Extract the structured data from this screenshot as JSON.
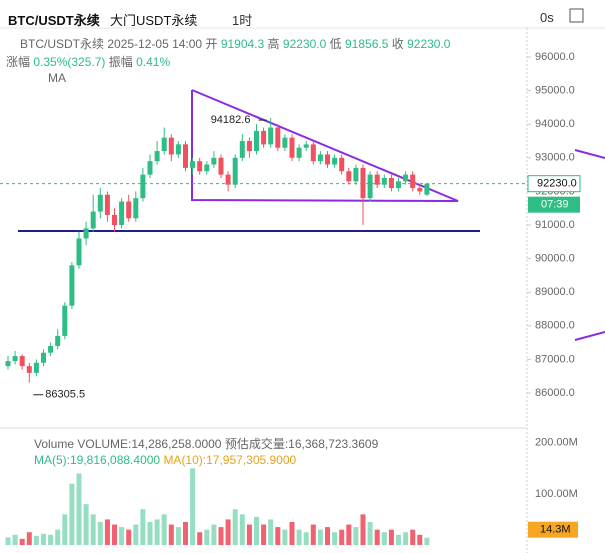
{
  "header": {
    "symbol": "BTC/USDT永续",
    "market": "大门USDT永续",
    "interval": "1时",
    "timer": "0s"
  },
  "info": {
    "symbol": "BTC/USDT永续",
    "time": "2025-12-05 14:00",
    "fields": [
      {
        "label": "开",
        "value": "91904.3"
      },
      {
        "label": "高",
        "value": "92230.0"
      },
      {
        "label": "低",
        "value": "91856.5"
      },
      {
        "label": "收",
        "value": "92230.0"
      }
    ],
    "change_label": "涨幅",
    "change": "0.35%(325.7)",
    "amplitude_label": "振幅",
    "amplitude": "0.41%",
    "ma": "MA"
  },
  "volume_info": {
    "title": "Volume",
    "volume": "VOLUME:14,286,258.0000",
    "estimate": "预估成交量:16,368,723.3609",
    "ma5": "MA(5):19,816,088.4000",
    "ma10": "MA(10):17,957,305.9000"
  },
  "chart_data": {
    "type": "candlestick",
    "up_color": "#2ebd85",
    "down_color": "#f0505f",
    "open": [
      86800,
      86950,
      87100,
      86800,
      86600,
      86900,
      87200,
      87400,
      87700,
      88600,
      89800,
      90600,
      90900,
      91400,
      91900,
      91300,
      91000,
      91700,
      91200,
      91800,
      92500,
      92900,
      93200,
      93600,
      93100,
      93400,
      92700,
      92900,
      92600,
      92800,
      93000,
      92500,
      92200,
      93000,
      93500,
      93200,
      93800,
      93400,
      93900,
      93300,
      93600,
      93000,
      93300,
      93400,
      92900,
      93100,
      92800,
      93000,
      92600,
      92300,
      92700,
      91800,
      92500,
      92200,
      92400,
      92100,
      92300,
      92500,
      92100,
      91904.3
    ],
    "high": [
      87100,
      87250,
      87150,
      86900,
      87000,
      87300,
      87500,
      87900,
      88700,
      89900,
      90800,
      91100,
      91900,
      92100,
      92000,
      91500,
      91800,
      91900,
      92000,
      92700,
      93100,
      93500,
      93900,
      93700,
      93500,
      93500,
      93000,
      93000,
      92900,
      93200,
      93100,
      92600,
      93100,
      93700,
      93600,
      94000,
      93900,
      94182.6,
      94000,
      93700,
      93700,
      93400,
      93500,
      93500,
      93200,
      93200,
      93100,
      93100,
      92700,
      92800,
      92800,
      92600,
      92600,
      92500,
      92500,
      92400,
      92600,
      92600,
      92200,
      92230
    ],
    "low": [
      86700,
      86850,
      86700,
      86305.5,
      86500,
      86800,
      87100,
      87300,
      87600,
      88500,
      89700,
      90400,
      90800,
      91200,
      91100,
      90800,
      90900,
      91100,
      91100,
      91700,
      92400,
      92800,
      93100,
      92900,
      93000,
      92600,
      92500,
      92500,
      92500,
      92700,
      92400,
      92000,
      92100,
      92900,
      93000,
      93100,
      93300,
      93300,
      93200,
      93200,
      92900,
      92900,
      93200,
      92800,
      92800,
      92700,
      92700,
      92500,
      92200,
      92200,
      91000,
      91700,
      92100,
      92100,
      92000,
      92000,
      92200,
      92000,
      91900,
      91856.5
    ],
    "close": [
      86950,
      87100,
      86800,
      86600,
      86900,
      87200,
      87400,
      87700,
      88600,
      89800,
      90600,
      90900,
      91400,
      91900,
      91300,
      91000,
      91700,
      91200,
      91800,
      92500,
      92900,
      93200,
      93600,
      93100,
      93400,
      92700,
      92900,
      92600,
      92800,
      93000,
      92500,
      92200,
      93000,
      93500,
      93200,
      93800,
      93400,
      93900,
      93300,
      93600,
      93000,
      93300,
      93400,
      92900,
      93100,
      92800,
      93000,
      92600,
      92300,
      92700,
      91800,
      92500,
      92200,
      92400,
      92100,
      92300,
      92500,
      92100,
      92000,
      92230
    ],
    "ylim": [
      85048,
      96804
    ],
    "yticks": [
      {
        "value": 86000,
        "label": "86000.0"
      },
      {
        "value": 87000,
        "label": "87000.0"
      },
      {
        "value": 88000,
        "label": "88000.0"
      },
      {
        "value": 89000,
        "label": "89000.0"
      },
      {
        "value": 90000,
        "label": "90000.0"
      },
      {
        "value": 91000,
        "label": "91000.0"
      },
      {
        "value": 92000,
        "label": "92000.0"
      },
      {
        "value": 93000,
        "label": "93000.0"
      },
      {
        "value": 94000,
        "label": "94000.0"
      },
      {
        "value": 95000,
        "label": "95000.0"
      },
      {
        "value": 96000,
        "label": "96000.0"
      }
    ],
    "annotations": [
      {
        "value": 94182.6,
        "label": "94182.6"
      },
      {
        "value": 86305.5,
        "label": "86305.5"
      }
    ],
    "current_price": {
      "value": 92230,
      "label": "92230.0"
    },
    "countdown": "07:39",
    "volume": {
      "values": [
        15,
        20,
        12,
        25,
        18,
        22,
        20,
        30,
        60,
        120,
        140,
        80,
        60,
        45,
        50,
        40,
        35,
        30,
        40,
        70,
        45,
        50,
        60,
        40,
        35,
        45,
        150,
        25,
        30,
        40,
        35,
        50,
        70,
        60,
        40,
        55,
        40,
        50,
        35,
        30,
        45,
        30,
        25,
        40,
        30,
        35,
        25,
        30,
        40,
        35,
        60,
        45,
        30,
        25,
        30,
        20,
        25,
        30,
        20,
        14.3
      ],
      "last_label": "14.3M",
      "ylim": [
        0,
        225
      ],
      "yticks": [
        {
          "value": 100,
          "label": "100.00M"
        },
        {
          "value": 200,
          "label": "200.00M"
        }
      ]
    }
  }
}
